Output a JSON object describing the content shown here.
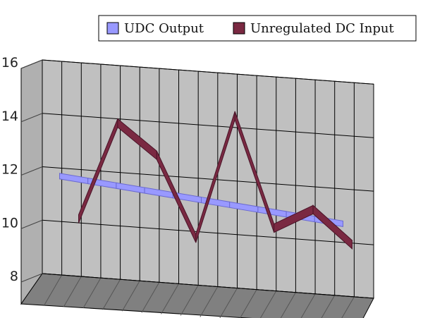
{
  "chart_data": {
    "type": "line",
    "style": "3d-line",
    "title": "",
    "xlabel": "",
    "ylabel": "",
    "ylim": [
      8,
      16
    ],
    "yticks": [
      8,
      10,
      12,
      14,
      16
    ],
    "grid": true,
    "legend_position": "top-right",
    "series": [
      {
        "name": "UDC Output",
        "color": "#9999ff",
        "values": [
          12,
          11.9,
          11.8,
          11.7,
          11.6,
          11.5,
          11.4,
          11.3,
          11.2,
          11.1,
          11.0
        ]
      },
      {
        "name": "Unregulated DC Input",
        "color": "#7a2942",
        "values": [
          10.5,
          14.2,
          13.1,
          10.1,
          14.8,
          10.7,
          11.5,
          10.3
        ]
      }
    ]
  },
  "colors": {
    "wall": "#c0c0c0",
    "floor": "#808080",
    "gridline": "#000000"
  }
}
